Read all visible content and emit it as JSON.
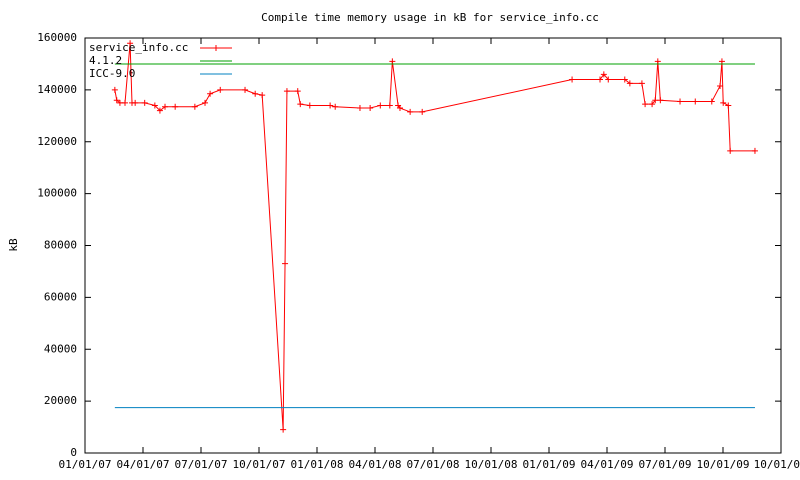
{
  "chart_data": {
    "type": "line",
    "title": "Compile time memory usage in kB for service_info.cc",
    "y_label": "kB",
    "ylim": [
      0,
      160000
    ],
    "yticks": [
      0,
      20000,
      40000,
      60000,
      80000,
      100000,
      120000,
      140000,
      160000
    ],
    "xlim": [
      0,
      1096
    ],
    "xticks": [
      {
        "value": 0,
        "label": "01/01/07"
      },
      {
        "value": 91.33,
        "label": "04/01/07"
      },
      {
        "value": 182.67,
        "label": "07/01/07"
      },
      {
        "value": 274,
        "label": "10/01/07"
      },
      {
        "value": 365.33,
        "label": "01/01/08"
      },
      {
        "value": 456.67,
        "label": "04/01/08"
      },
      {
        "value": 548,
        "label": "07/01/08"
      },
      {
        "value": 639.33,
        "label": "10/01/08"
      },
      {
        "value": 730.67,
        "label": "01/01/09"
      },
      {
        "value": 822,
        "label": "04/01/09"
      },
      {
        "value": 913.33,
        "label": "07/01/09"
      },
      {
        "value": 1004.67,
        "label": "10/01/09"
      },
      {
        "value": 1096,
        "label": "10/01/0"
      }
    ],
    "legend": "top-left",
    "series": [
      {
        "name": "service_info.cc",
        "color": "#ff0000",
        "marker": "plus",
        "x": [
          47,
          50,
          55,
          63,
          71,
          74,
          79,
          94,
          110,
          118,
          126,
          142,
          173,
          189,
          197,
          213,
          252,
          268,
          279,
          312,
          315,
          318,
          335,
          339,
          354,
          386,
          394,
          433,
          449,
          465,
          480,
          484,
          493,
          496,
          512,
          531,
          767,
          811,
          817,
          824,
          850,
          858,
          877,
          882,
          893,
          898,
          902,
          906,
          937,
          961,
          987,
          1000,
          1003,
          1005,
          1013,
          1016,
          1055
        ],
        "values": [
          140000,
          136000,
          135000,
          135000,
          158000,
          135000,
          135000,
          135000,
          134000,
          132000,
          133500,
          133500,
          133500,
          135000,
          138500,
          140000,
          140000,
          138500,
          138000,
          9000,
          73000,
          139500,
          139500,
          134500,
          134000,
          134000,
          133500,
          133000,
          133000,
          134000,
          134000,
          151000,
          134000,
          133000,
          131500,
          131500,
          144000,
          144000,
          146000,
          144000,
          144000,
          142500,
          142500,
          134500,
          134500,
          136000,
          151000,
          136000,
          135500,
          135500,
          135500,
          141500,
          151000,
          135000,
          134000,
          116500,
          116500
        ]
      },
      {
        "name": "4.1.2",
        "color": "#00a000",
        "x": [
          47,
          1055
        ],
        "values": [
          150000,
          150000
        ]
      },
      {
        "name": "ICC-9.0",
        "color": "#0080c0",
        "x": [
          47,
          1055
        ],
        "values": [
          17500,
          17500
        ]
      }
    ]
  }
}
